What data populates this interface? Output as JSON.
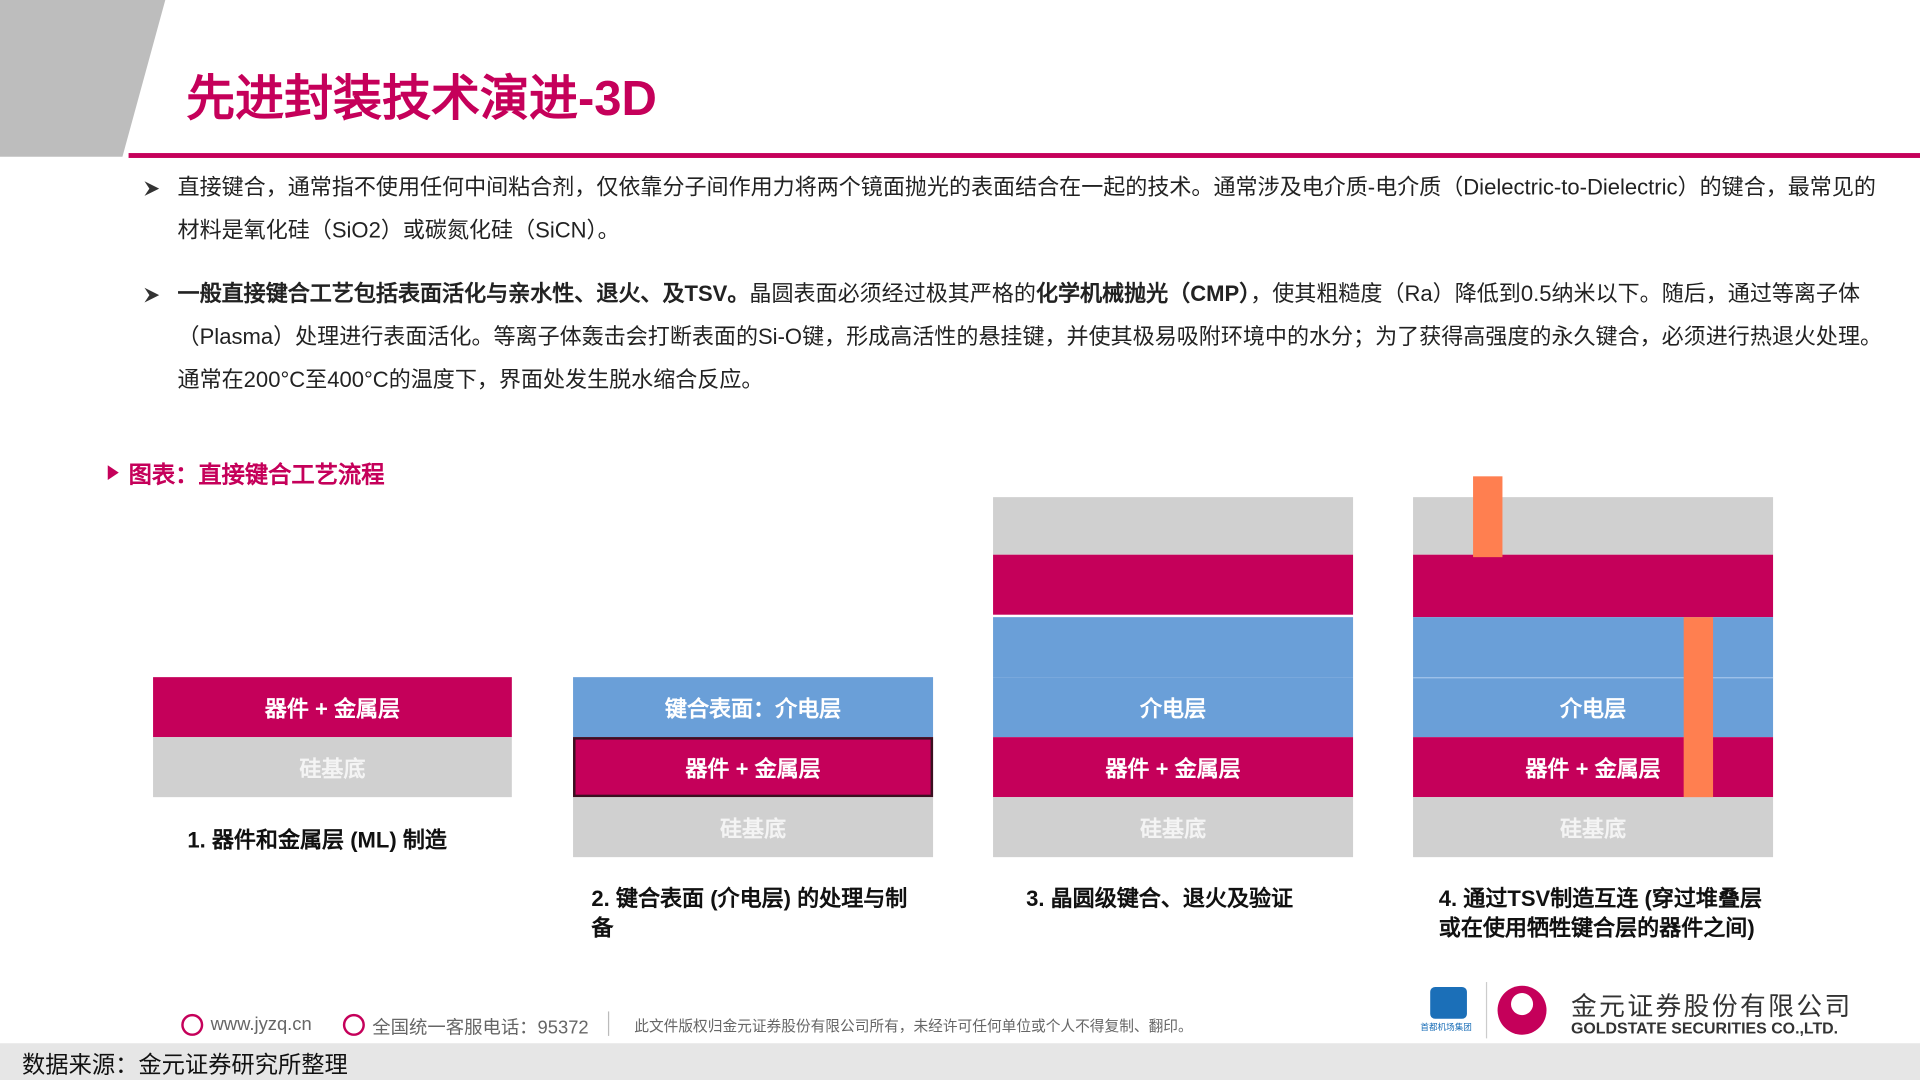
{
  "header": {
    "title": "先进封装技术演进-3D"
  },
  "bullets": [
    [
      {
        "text": "直接键合，通常指不使用任何中间粘合剂，仅依靠分子间作用力将两个镜面抛光的表面结合在一起的技术。通常涉及电介质-电介质（Dielectric-to-Dielectric）的键合，最常见的材料是氧化硅（SiO2）或碳氮化硅（SiCN）。",
        "bold": false
      }
    ],
    [
      {
        "text": "一般直接键合工艺包括表面活化与亲水性、退火、及TSV。",
        "bold": true
      },
      {
        "text": "晶圆表面必须经过极其严格的",
        "bold": false
      },
      {
        "text": "化学机械抛光（CMP）",
        "bold": true
      },
      {
        "text": "，使其粗糙度（Ra）降低到0.5纳米以下。随后，通过等离子体（Plasma）处理进行表面活化。等离子体轰击会打断表面的Si-O键，形成高活性的悬挂键，并使其极易吸附环境中的水分；为了获得高强度的永久键合，必须进行热退火处理。通常在200°C至400°C的温度下，界面处发生脱水缩合反应。",
        "bold": false
      }
    ]
  ],
  "figure": {
    "caption": "图表：直接键合工艺流程",
    "steps": [
      {
        "layers": [
          "器件 + 金属层",
          "硅基底"
        ],
        "label": "1. 器件和金属层 (ML) 制造"
      },
      {
        "layers": [
          "键合表面：介电层",
          "器件 + 金属层",
          "硅基底"
        ],
        "label": "2. 键合表面 (介电层) 的处理与制备"
      },
      {
        "layers": [
          "介电层",
          "器件 + 金属层",
          "硅基底"
        ],
        "label": "3. 晶圆级键合、退火及验证"
      },
      {
        "layers": [
          "介电层",
          "器件 + 金属层",
          "硅基底"
        ],
        "label": "4. 通过TSV制造互连 (穿过堆叠层或在使用牺牲键合层的器件之间)"
      }
    ]
  },
  "footer": {
    "website": "www.jyzq.cn",
    "hotline": "全国统一客服电话：95372",
    "copyright": "此文件版权归金元证券股份有限公司所有，未经许可任何单位或个人不得复制、翻印。",
    "partner": "首都机场集团",
    "company_cn": "金元证券股份有限公司",
    "company_en": "GOLDSTATE SECURITIES CO.,LTD."
  },
  "source": "数据来源：金元证券研究所整理"
}
